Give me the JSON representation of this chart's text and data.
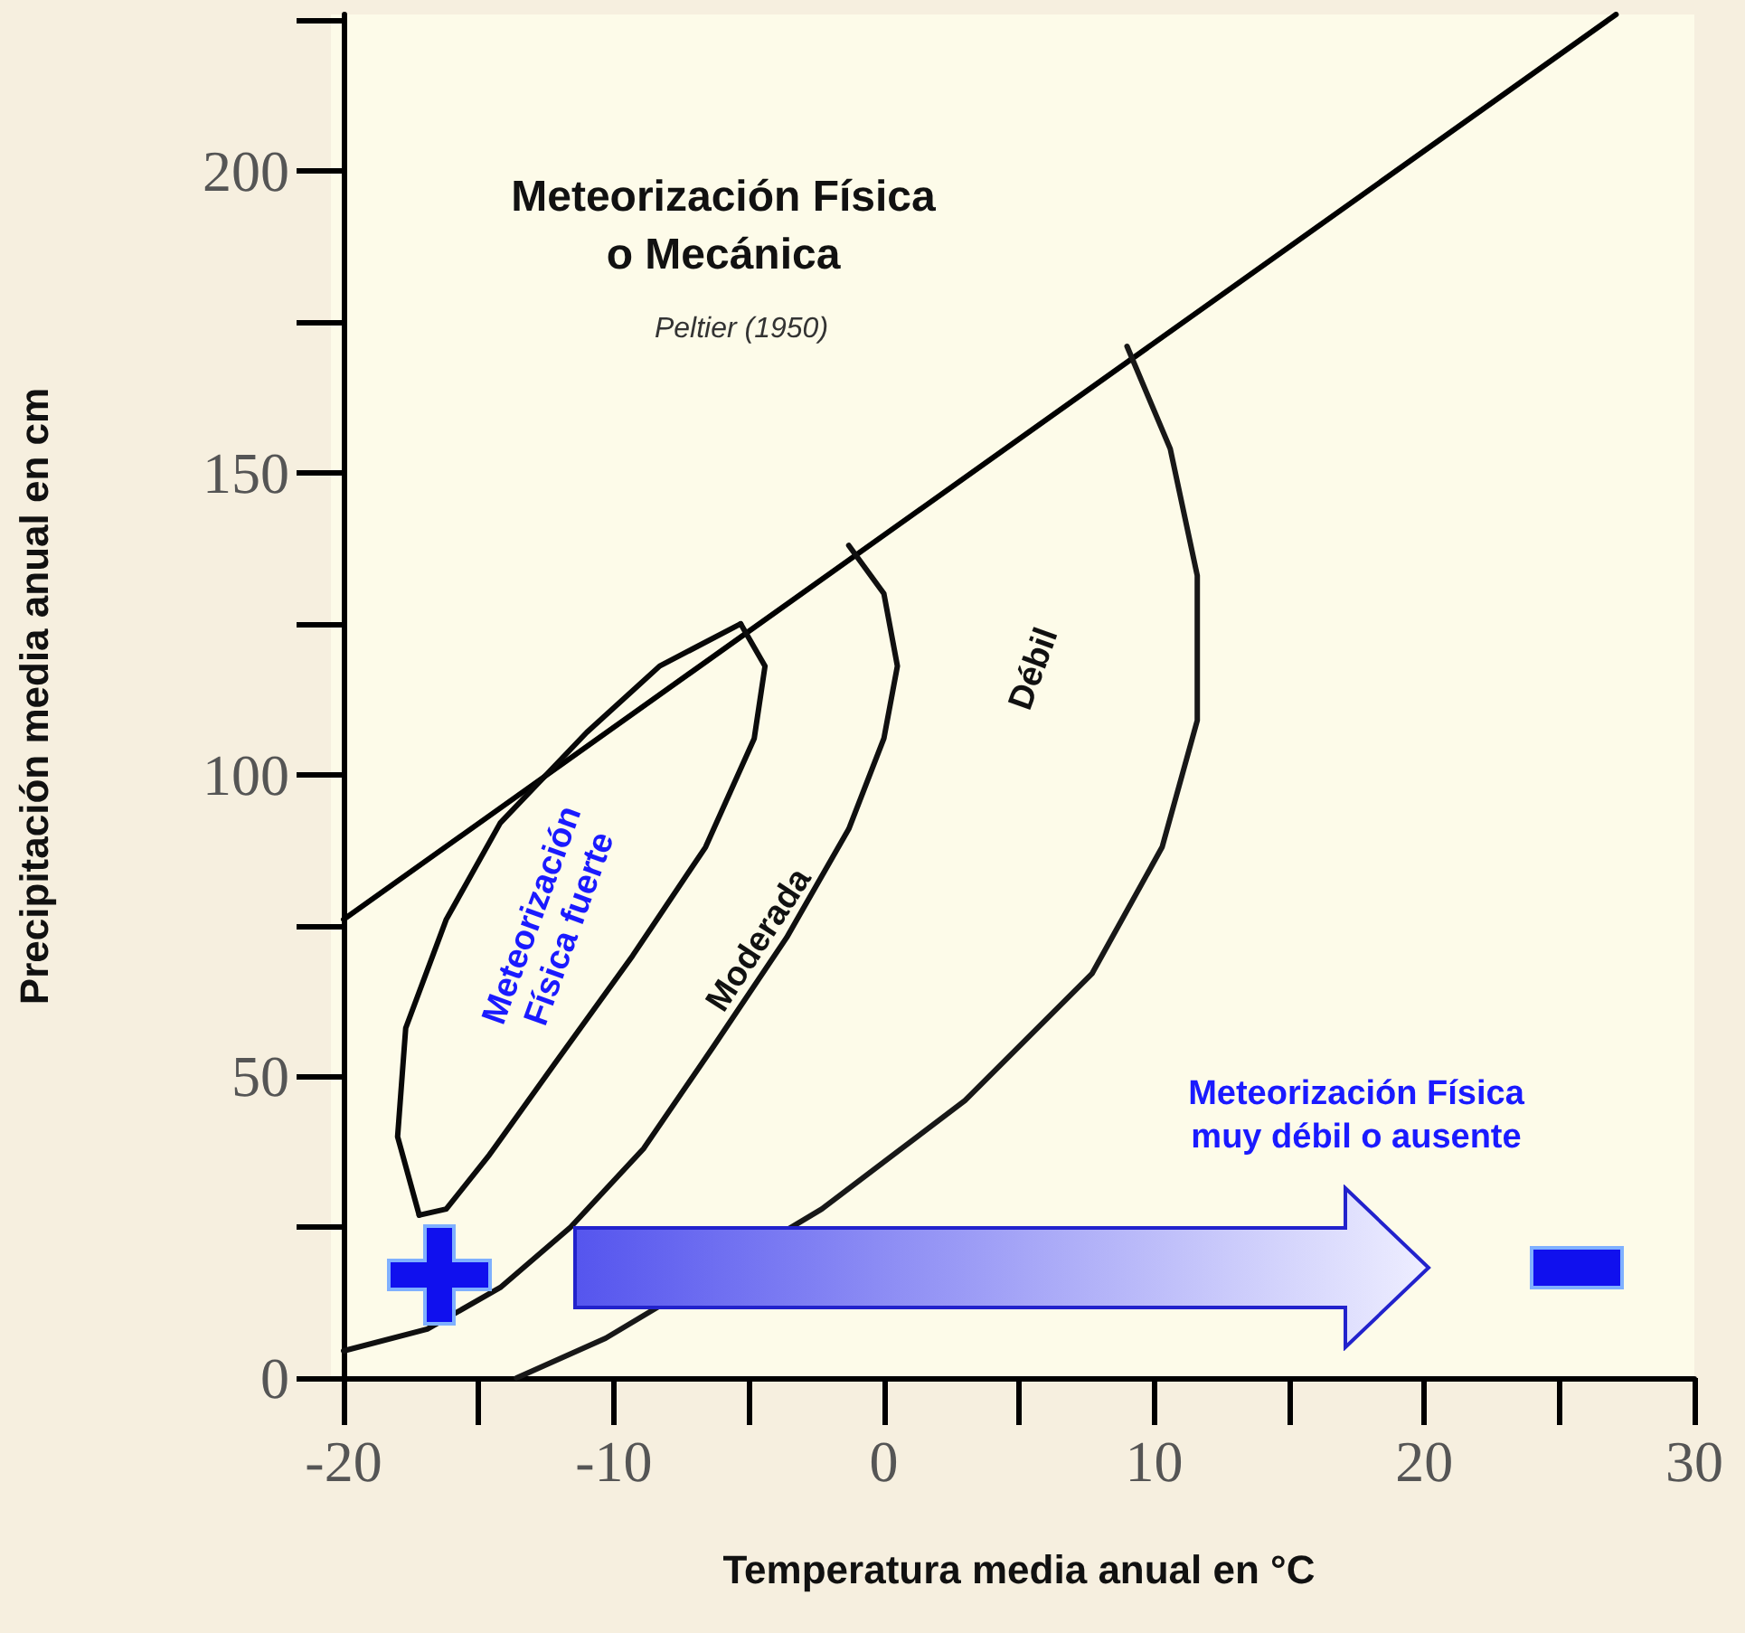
{
  "chart_data": {
    "type": "line",
    "xlabel": "Temperatura media anual en °C",
    "ylabel": "Precipitación media anual en cm",
    "xlim": [
      -20,
      30
    ],
    "ylim": [
      0,
      226
    ],
    "xticks": [
      -20,
      -10,
      0,
      10,
      20,
      30
    ],
    "yticks": [
      0,
      50,
      100,
      150,
      200
    ],
    "marker": "none",
    "line_style": "solid",
    "series": [
      {
        "color": "#000000",
        "x": [
          -20,
          27.1
        ],
        "values": [
          76,
          226
        ]
      },
      {
        "color": "#080808",
        "x": [
          -17.2,
          -18.0,
          -17.7,
          -16.2,
          -14.2,
          -11.0,
          -8.3,
          -5.3
        ],
        "values": [
          27,
          40,
          58,
          76,
          92,
          107,
          118,
          125
        ]
      },
      {
        "color": "#0c0c0c",
        "x": [
          -5.3,
          -4.4,
          -4.8,
          -6.6,
          -9.3,
          -12.2,
          -14.6,
          -16.2,
          -17.2
        ],
        "values": [
          125,
          118,
          106,
          88,
          70,
          52,
          37,
          28,
          27
        ]
      },
      {
        "color": "#101010",
        "x": [
          -20,
          -16.9,
          -14.2,
          -11.6,
          -8.9,
          -6.3,
          -3.6,
          -1.3,
          0.0,
          0.5,
          0.0,
          -1.3
        ],
        "values": [
          4.5,
          8.1,
          15,
          25,
          38,
          55,
          73,
          91,
          106,
          118,
          130,
          138
        ]
      },
      {
        "color": "#181818",
        "x": [
          -13.6,
          -10.3,
          -2.3,
          3.0,
          7.7,
          10.3,
          11.6,
          11.6,
          10.6,
          9.0
        ],
        "values": [
          0,
          6.6,
          28,
          46,
          67,
          88,
          109,
          133,
          154,
          171
        ]
      }
    ],
    "annotations": [
      "Meteorización Física\no Mecánica",
      "Peltier (1950)",
      "Meteorización\nFísica fuerte",
      "Moderada",
      "Débil",
      "Meteorización Física\nmuy débil o ausente"
    ]
  }
}
